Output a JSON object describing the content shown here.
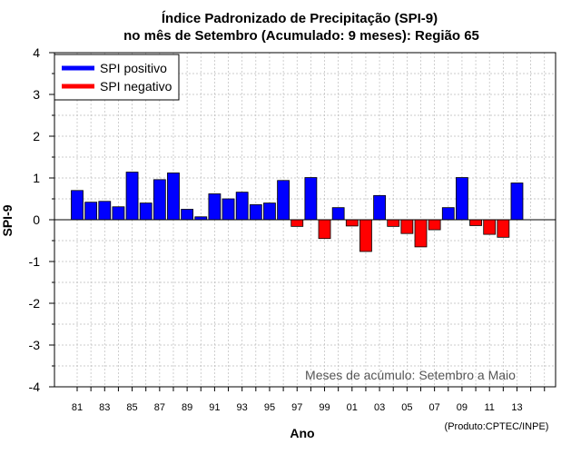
{
  "chart_data": {
    "type": "bar",
    "title_line1": "Índice Padronizado de Precipitação (SPI-9)",
    "title_line2": "no mês de Setembro (Acumulado: 9 meses): Região 65",
    "xlabel": "Ano",
    "ylabel": "SPI-9",
    "ylim": [
      -4,
      4
    ],
    "yticks": [
      "4",
      "3",
      "2",
      "1",
      "0",
      "-1",
      "-2",
      "-3",
      "-4"
    ],
    "ytick_values": [
      4,
      3,
      2,
      1,
      0,
      -1,
      -2,
      -3,
      -4
    ],
    "grid": true,
    "legend_position": "top-left",
    "legend": [
      {
        "label": "SPI positivo",
        "color": "#0000ff"
      },
      {
        "label": "SPI negativo",
        "color": "#ff0000"
      }
    ],
    "colors": {
      "positive": "#0000ff",
      "negative": "#ff0000"
    },
    "x_tick_labels": [
      "81",
      "83",
      "85",
      "87",
      "89",
      "91",
      "93",
      "95",
      "97",
      "99",
      "01",
      "03",
      "05",
      "07",
      "09",
      "11",
      "13"
    ],
    "categories": [
      "1981",
      "1982",
      "1983",
      "1984",
      "1985",
      "1986",
      "1987",
      "1988",
      "1989",
      "1990",
      "1991",
      "1992",
      "1993",
      "1994",
      "1995",
      "1996",
      "1997",
      "1998",
      "1999",
      "2000",
      "2001",
      "2002",
      "2003",
      "2004",
      "2005",
      "2006",
      "2007",
      "2008",
      "2009",
      "2010",
      "2011",
      "2012",
      "2013"
    ],
    "values": [
      0.7,
      0.42,
      0.44,
      0.31,
      1.14,
      0.4,
      0.96,
      1.12,
      0.25,
      0.07,
      0.62,
      0.5,
      0.66,
      0.36,
      0.4,
      0.94,
      -0.16,
      1.01,
      -0.45,
      0.29,
      -0.15,
      -0.76,
      0.58,
      -0.16,
      -0.33,
      -0.65,
      -0.24,
      0.29,
      1.01,
      -0.14,
      -0.35,
      -0.42,
      0.88
    ],
    "annotation": "Meses de acúmulo: Setembro a Maio",
    "credit": "(Produto:CPTEC/INPE)"
  }
}
